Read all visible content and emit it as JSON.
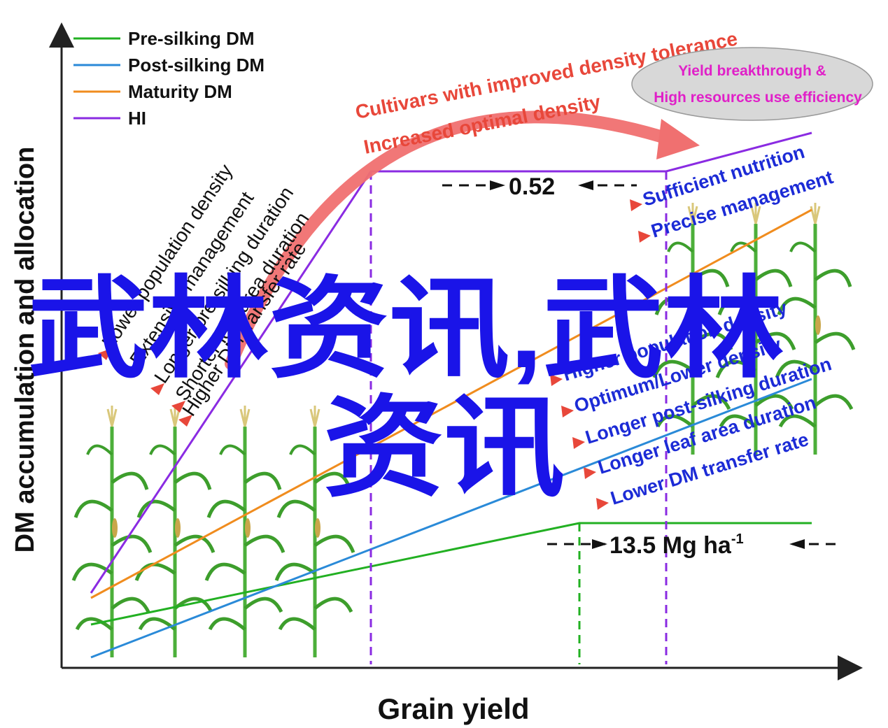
{
  "axes": {
    "x_label": "Grain yield",
    "y_label": "DM accumulation and allocation"
  },
  "legend": [
    {
      "label": "Pre-silking DM",
      "color": "#22b022"
    },
    {
      "label": "Post-silking DM",
      "color": "#2a8ad8"
    },
    {
      "label": "Maturity DM",
      "color": "#f08c1e"
    },
    {
      "label": "HI",
      "color": "#8a2be2"
    }
  ],
  "left_factors": [
    "Lower population density",
    "Extensive management",
    "Longer pre-silking duration",
    "Shorter leaf area duration",
    "Higher DM transfer rate"
  ],
  "right_factors_top": [
    "Sufficient nutrition",
    "Precise management"
  ],
  "right_factors_bottom": [
    "Higher population density",
    "Optimum/Lower density",
    "Longer post-silking duration",
    "Longer leaf area duration",
    "Lower DM transfer rate"
  ],
  "arrow_labels": [
    "Cultivars with improved density tolerance",
    "Increased optimal density"
  ],
  "ellipse": {
    "line1": "Yield breakthrough &",
    "line2": "High resources use efficiency"
  },
  "annotations": {
    "hi_value": "0.52",
    "yield_value": "13.5 Mg ha",
    "yield_unit_sup": "-1"
  },
  "watermark": {
    "line1": "武林资讯,武林",
    "line2": "资讯"
  },
  "colors": {
    "arrow": "#f07070",
    "label_red": "#e8473a",
    "label_blue": "#1c2bd6",
    "ellipse_text": "#e020c8",
    "watermark": "#1a14e8"
  }
}
